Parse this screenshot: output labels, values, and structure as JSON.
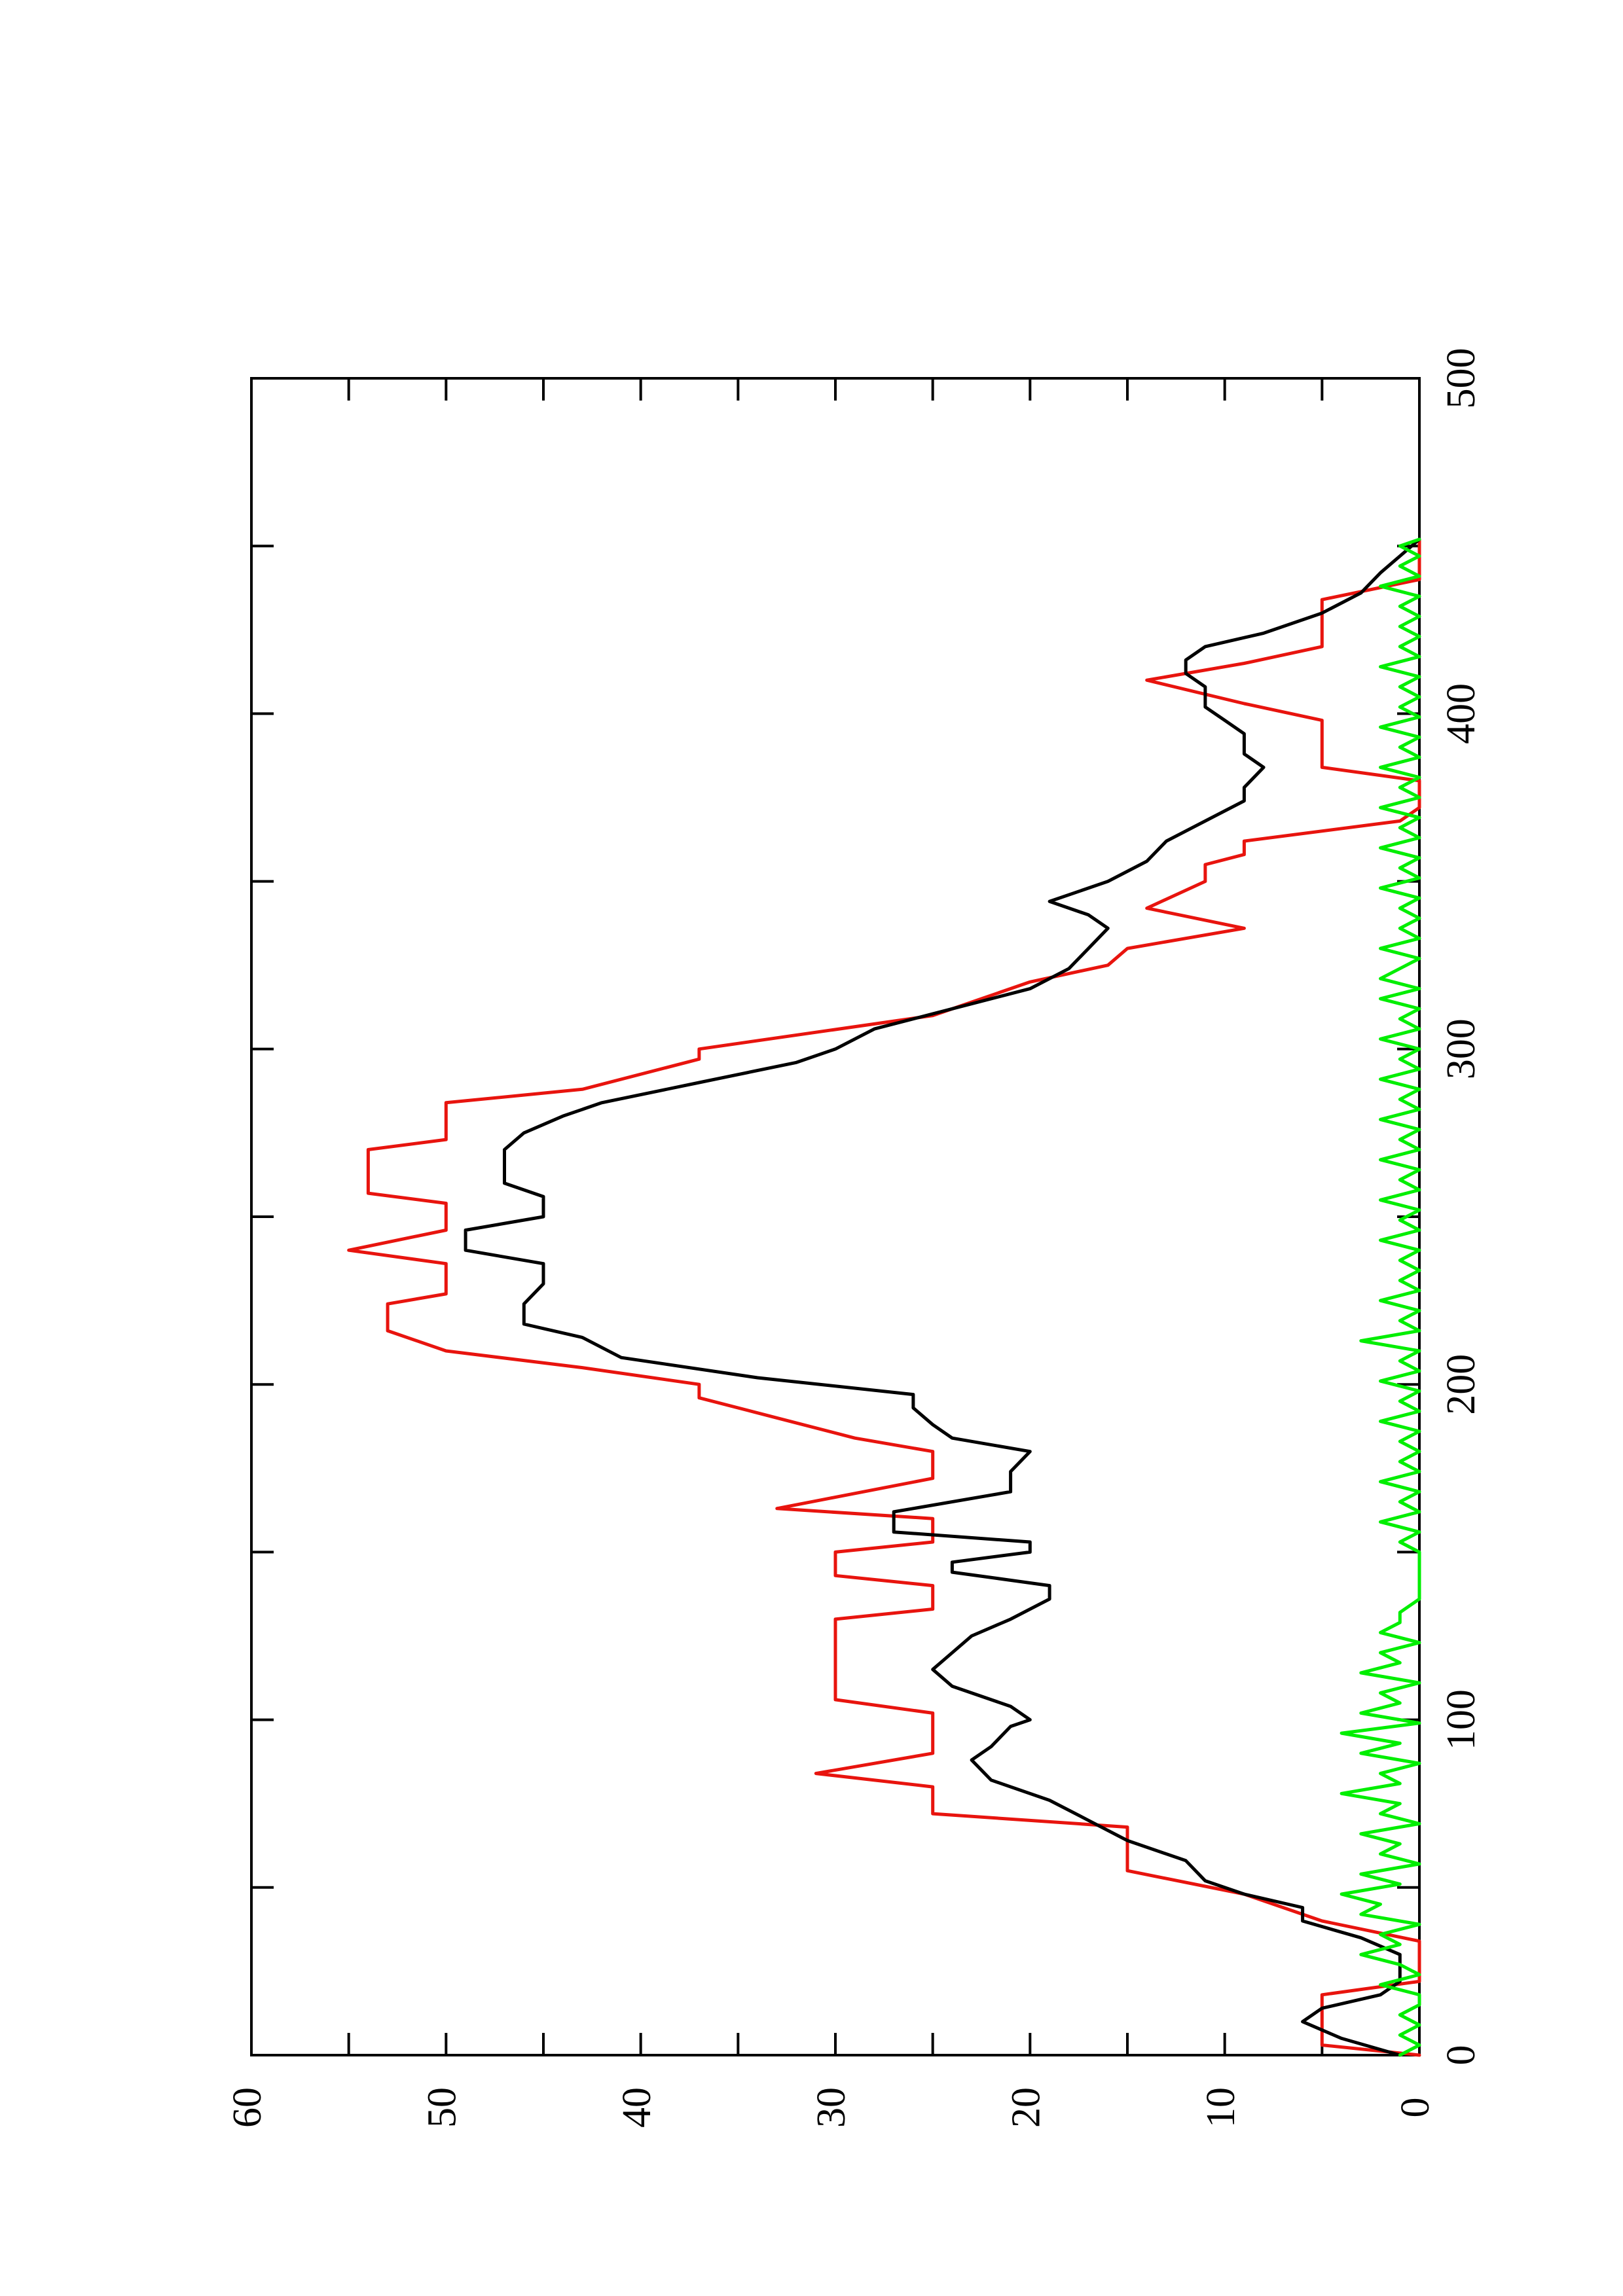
{
  "chart_data": {
    "type": "line",
    "orientation": "rotated-90-counterclockwise",
    "title": "",
    "xlabel": "",
    "ylabel": "",
    "xlim": [
      0,
      500
    ],
    "ylim": [
      0,
      60
    ],
    "x_ticks": [
      0,
      100,
      200,
      300,
      400,
      500
    ],
    "y_ticks": [
      0,
      10,
      20,
      30,
      40,
      50,
      60
    ],
    "grid": false,
    "legend": "none",
    "series": [
      {
        "color": "#e8140e",
        "points": [
          [
            0,
            0
          ],
          [
            3,
            5
          ],
          [
            18,
            5
          ],
          [
            22,
            0
          ],
          [
            34,
            0
          ],
          [
            40,
            5
          ],
          [
            48,
            9
          ],
          [
            55,
            15
          ],
          [
            68,
            15
          ],
          [
            72,
            25
          ],
          [
            80,
            25
          ],
          [
            84,
            31
          ],
          [
            90,
            25
          ],
          [
            102,
            25
          ],
          [
            106,
            30
          ],
          [
            130,
            30
          ],
          [
            133,
            25
          ],
          [
            140,
            25
          ],
          [
            143,
            30
          ],
          [
            150,
            30
          ],
          [
            153,
            25
          ],
          [
            160,
            25
          ],
          [
            163,
            33
          ],
          [
            172,
            25
          ],
          [
            180,
            25
          ],
          [
            184,
            29
          ],
          [
            190,
            33
          ],
          [
            196,
            37
          ],
          [
            200,
            37
          ],
          [
            205,
            43
          ],
          [
            210,
            50
          ],
          [
            216,
            53
          ],
          [
            224,
            53
          ],
          [
            227,
            50
          ],
          [
            236,
            50
          ],
          [
            240,
            55
          ],
          [
            246,
            50
          ],
          [
            254,
            50
          ],
          [
            257,
            54
          ],
          [
            270,
            54
          ],
          [
            273,
            50
          ],
          [
            284,
            50
          ],
          [
            288,
            43
          ],
          [
            297,
            37
          ],
          [
            300,
            37
          ],
          [
            310,
            25
          ],
          [
            320,
            20
          ],
          [
            325,
            16
          ],
          [
            330,
            15
          ],
          [
            336,
            9
          ],
          [
            342,
            14
          ],
          [
            350,
            11
          ],
          [
            355,
            11
          ],
          [
            358,
            9
          ],
          [
            362,
            9
          ],
          [
            368,
            1
          ],
          [
            372,
            0
          ],
          [
            380,
            0
          ],
          [
            384,
            5
          ],
          [
            398,
            5
          ],
          [
            403,
            9
          ],
          [
            410,
            14
          ],
          [
            415,
            9
          ],
          [
            420,
            5
          ],
          [
            434,
            5
          ],
          [
            440,
            0
          ],
          [
            452,
            0
          ]
        ]
      },
      {
        "color": "#000000",
        "points": [
          [
            0,
            1
          ],
          [
            5,
            4
          ],
          [
            10,
            6
          ],
          [
            14,
            5
          ],
          [
            18,
            2
          ],
          [
            22,
            1
          ],
          [
            30,
            1
          ],
          [
            35,
            3
          ],
          [
            40,
            6
          ],
          [
            44,
            6
          ],
          [
            48,
            9
          ],
          [
            52,
            11
          ],
          [
            58,
            12
          ],
          [
            64,
            15
          ],
          [
            70,
            17
          ],
          [
            76,
            19
          ],
          [
            82,
            22
          ],
          [
            88,
            23
          ],
          [
            92,
            22
          ],
          [
            98,
            21
          ],
          [
            100,
            20
          ],
          [
            104,
            21
          ],
          [
            110,
            24
          ],
          [
            115,
            25
          ],
          [
            120,
            24
          ],
          [
            125,
            23
          ],
          [
            130,
            21
          ],
          [
            136,
            19
          ],
          [
            140,
            19
          ],
          [
            144,
            24
          ],
          [
            147,
            24
          ],
          [
            150,
            20
          ],
          [
            153,
            20
          ],
          [
            156,
            27
          ],
          [
            162,
            27
          ],
          [
            168,
            21
          ],
          [
            174,
            21
          ],
          [
            180,
            20
          ],
          [
            184,
            24
          ],
          [
            188,
            25
          ],
          [
            193,
            26
          ],
          [
            197,
            26
          ],
          [
            202,
            34
          ],
          [
            208,
            41
          ],
          [
            214,
            43
          ],
          [
            218,
            46
          ],
          [
            224,
            46
          ],
          [
            230,
            45
          ],
          [
            236,
            45
          ],
          [
            240,
            49
          ],
          [
            246,
            49
          ],
          [
            250,
            45
          ],
          [
            256,
            45
          ],
          [
            260,
            47
          ],
          [
            265,
            47
          ],
          [
            270,
            47
          ],
          [
            275,
            46
          ],
          [
            280,
            44
          ],
          [
            284,
            42
          ],
          [
            290,
            37
          ],
          [
            296,
            32
          ],
          [
            300,
            30
          ],
          [
            306,
            28
          ],
          [
            312,
            24
          ],
          [
            318,
            20
          ],
          [
            324,
            18
          ],
          [
            330,
            17
          ],
          [
            336,
            16
          ],
          [
            340,
            17
          ],
          [
            344,
            19
          ],
          [
            350,
            16
          ],
          [
            356,
            14
          ],
          [
            362,
            13
          ],
          [
            368,
            11
          ],
          [
            374,
            9
          ],
          [
            378,
            9
          ],
          [
            384,
            8
          ],
          [
            388,
            9
          ],
          [
            394,
            9
          ],
          [
            398,
            10
          ],
          [
            402,
            11
          ],
          [
            408,
            11
          ],
          [
            412,
            12
          ],
          [
            416,
            12
          ],
          [
            420,
            11
          ],
          [
            424,
            8
          ],
          [
            430,
            5
          ],
          [
            436,
            3
          ],
          [
            442,
            2
          ],
          [
            447,
            1
          ],
          [
            452,
            0
          ]
        ]
      },
      {
        "color": "#00ee00",
        "points": [
          [
            0,
            1
          ],
          [
            3,
            0
          ],
          [
            6,
            1
          ],
          [
            9,
            0
          ],
          [
            12,
            1
          ],
          [
            15,
            0
          ],
          [
            18,
            0
          ],
          [
            21,
            2
          ],
          [
            24,
            0
          ],
          [
            27,
            1
          ],
          [
            30,
            3
          ],
          [
            33,
            1
          ],
          [
            36,
            2
          ],
          [
            39,
            0
          ],
          [
            42,
            3
          ],
          [
            45,
            2
          ],
          [
            48,
            4
          ],
          [
            51,
            1
          ],
          [
            54,
            3
          ],
          [
            57,
            0
          ],
          [
            60,
            2
          ],
          [
            63,
            1
          ],
          [
            66,
            3
          ],
          [
            69,
            0
          ],
          [
            72,
            2
          ],
          [
            75,
            1
          ],
          [
            78,
            4
          ],
          [
            81,
            1
          ],
          [
            84,
            2
          ],
          [
            87,
            0
          ],
          [
            90,
            3
          ],
          [
            93,
            1
          ],
          [
            96,
            4
          ],
          [
            99,
            0
          ],
          [
            102,
            3
          ],
          [
            105,
            1
          ],
          [
            108,
            2
          ],
          [
            111,
            0
          ],
          [
            114,
            3
          ],
          [
            117,
            1
          ],
          [
            120,
            2
          ],
          [
            123,
            0
          ],
          [
            126,
            2
          ],
          [
            129,
            1
          ],
          [
            132,
            1
          ],
          [
            136,
            0
          ],
          [
            140,
            0
          ],
          [
            145,
            0
          ],
          [
            150,
            0
          ],
          [
            153,
            1
          ],
          [
            156,
            0
          ],
          [
            159,
            2
          ],
          [
            162,
            0
          ],
          [
            165,
            1
          ],
          [
            168,
            0
          ],
          [
            171,
            2
          ],
          [
            174,
            0
          ],
          [
            177,
            1
          ],
          [
            180,
            0
          ],
          [
            183,
            1
          ],
          [
            186,
            0
          ],
          [
            189,
            2
          ],
          [
            192,
            0
          ],
          [
            195,
            1
          ],
          [
            198,
            0
          ],
          [
            201,
            2
          ],
          [
            204,
            0
          ],
          [
            207,
            1
          ],
          [
            210,
            0
          ],
          [
            213,
            3
          ],
          [
            216,
            0
          ],
          [
            219,
            1
          ],
          [
            222,
            0
          ],
          [
            225,
            2
          ],
          [
            228,
            0
          ],
          [
            231,
            1
          ],
          [
            234,
            0
          ],
          [
            237,
            1
          ],
          [
            240,
            0
          ],
          [
            243,
            2
          ],
          [
            246,
            0
          ],
          [
            249,
            1
          ],
          [
            252,
            0
          ],
          [
            255,
            2
          ],
          [
            258,
            0
          ],
          [
            261,
            1
          ],
          [
            264,
            0
          ],
          [
            267,
            2
          ],
          [
            270,
            0
          ],
          [
            273,
            1
          ],
          [
            276,
            0
          ],
          [
            279,
            2
          ],
          [
            282,
            0
          ],
          [
            285,
            1
          ],
          [
            288,
            0
          ],
          [
            291,
            2
          ],
          [
            294,
            0
          ],
          [
            297,
            1
          ],
          [
            300,
            0
          ],
          [
            303,
            2
          ],
          [
            306,
            0
          ],
          [
            309,
            1
          ],
          [
            312,
            0
          ],
          [
            315,
            2
          ],
          [
            318,
            0
          ],
          [
            321,
            2
          ],
          [
            324,
            1
          ],
          [
            327,
            0
          ],
          [
            330,
            2
          ],
          [
            333,
            0
          ],
          [
            336,
            1
          ],
          [
            339,
            0
          ],
          [
            342,
            1
          ],
          [
            345,
            0
          ],
          [
            348,
            2
          ],
          [
            351,
            0
          ],
          [
            354,
            1
          ],
          [
            357,
            0
          ],
          [
            360,
            2
          ],
          [
            363,
            0
          ],
          [
            366,
            1
          ],
          [
            369,
            0
          ],
          [
            372,
            2
          ],
          [
            375,
            0
          ],
          [
            378,
            1
          ],
          [
            381,
            0
          ],
          [
            384,
            2
          ],
          [
            387,
            0
          ],
          [
            390,
            1
          ],
          [
            393,
            0
          ],
          [
            396,
            2
          ],
          [
            399,
            0
          ],
          [
            402,
            1
          ],
          [
            405,
            0
          ],
          [
            408,
            1
          ],
          [
            411,
            0
          ],
          [
            414,
            2
          ],
          [
            417,
            0
          ],
          [
            420,
            1
          ],
          [
            423,
            0
          ],
          [
            426,
            1
          ],
          [
            429,
            0
          ],
          [
            432,
            1
          ],
          [
            435,
            0
          ],
          [
            438,
            2
          ],
          [
            441,
            0
          ],
          [
            444,
            1
          ],
          [
            447,
            0
          ],
          [
            450,
            1
          ],
          [
            452,
            0
          ]
        ]
      }
    ]
  }
}
